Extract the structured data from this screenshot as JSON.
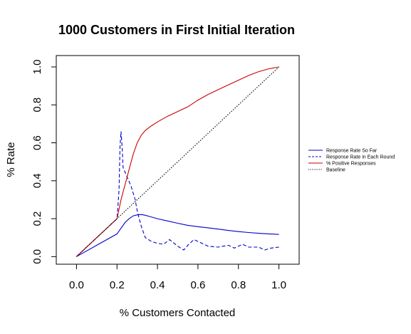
{
  "chart_data": {
    "type": "line",
    "title": "1000 Customers in First Initial Iteration",
    "xlabel": "% Customers Contacted",
    "ylabel": "% Rate",
    "xlim": [
      -0.1,
      1.1
    ],
    "ylim": [
      -0.04,
      1.06
    ],
    "xticks": [
      "0.0",
      "0.2",
      "0.4",
      "0.6",
      "0.8",
      "1.0"
    ],
    "yticks": [
      "0.0",
      "0.2",
      "0.4",
      "0.6",
      "0.8",
      "1.0"
    ],
    "grid": false,
    "legend_position": "right",
    "series": [
      {
        "name": "Response Rate So Far",
        "color": "#0000cc",
        "dash": "solid",
        "points": [
          [
            0.0,
            0.0
          ],
          [
            0.1,
            0.06
          ],
          [
            0.2,
            0.12
          ],
          [
            0.22,
            0.15
          ],
          [
            0.24,
            0.18
          ],
          [
            0.26,
            0.2
          ],
          [
            0.28,
            0.215
          ],
          [
            0.3,
            0.22
          ],
          [
            0.32,
            0.222
          ],
          [
            0.34,
            0.218
          ],
          [
            0.36,
            0.212
          ],
          [
            0.4,
            0.2
          ],
          [
            0.45,
            0.188
          ],
          [
            0.5,
            0.176
          ],
          [
            0.55,
            0.165
          ],
          [
            0.6,
            0.158
          ],
          [
            0.65,
            0.152
          ],
          [
            0.7,
            0.145
          ],
          [
            0.75,
            0.138
          ],
          [
            0.8,
            0.132
          ],
          [
            0.85,
            0.127
          ],
          [
            0.9,
            0.123
          ],
          [
            0.95,
            0.12
          ],
          [
            1.0,
            0.117
          ]
        ]
      },
      {
        "name": "Response Rate in Each Round",
        "color": "#0000cc",
        "dash": "dashed",
        "points": [
          [
            0.0,
            0.0
          ],
          [
            0.1,
            0.1
          ],
          [
            0.2,
            0.2
          ],
          [
            0.21,
            0.35
          ],
          [
            0.215,
            0.58
          ],
          [
            0.22,
            0.66
          ],
          [
            0.225,
            0.58
          ],
          [
            0.23,
            0.47
          ],
          [
            0.25,
            0.42
          ],
          [
            0.27,
            0.37
          ],
          [
            0.29,
            0.3
          ],
          [
            0.3,
            0.24
          ],
          [
            0.32,
            0.16
          ],
          [
            0.34,
            0.1
          ],
          [
            0.37,
            0.08
          ],
          [
            0.4,
            0.07
          ],
          [
            0.43,
            0.065
          ],
          [
            0.46,
            0.09
          ],
          [
            0.5,
            0.055
          ],
          [
            0.53,
            0.035
          ],
          [
            0.55,
            0.06
          ],
          [
            0.58,
            0.09
          ],
          [
            0.6,
            0.08
          ],
          [
            0.65,
            0.055
          ],
          [
            0.7,
            0.05
          ],
          [
            0.75,
            0.06
          ],
          [
            0.78,
            0.045
          ],
          [
            0.82,
            0.065
          ],
          [
            0.85,
            0.05
          ],
          [
            0.9,
            0.05
          ],
          [
            0.93,
            0.035
          ],
          [
            0.96,
            0.045
          ],
          [
            1.0,
            0.05
          ]
        ]
      },
      {
        "name": "% Positive Responses",
        "color": "#cc0000",
        "dash": "solid",
        "points": [
          [
            0.0,
            0.0
          ],
          [
            0.1,
            0.1
          ],
          [
            0.2,
            0.2
          ],
          [
            0.22,
            0.3
          ],
          [
            0.24,
            0.38
          ],
          [
            0.26,
            0.46
          ],
          [
            0.28,
            0.54
          ],
          [
            0.3,
            0.6
          ],
          [
            0.32,
            0.64
          ],
          [
            0.34,
            0.665
          ],
          [
            0.37,
            0.69
          ],
          [
            0.4,
            0.71
          ],
          [
            0.45,
            0.74
          ],
          [
            0.5,
            0.765
          ],
          [
            0.55,
            0.79
          ],
          [
            0.6,
            0.825
          ],
          [
            0.65,
            0.855
          ],
          [
            0.7,
            0.88
          ],
          [
            0.75,
            0.905
          ],
          [
            0.8,
            0.93
          ],
          [
            0.85,
            0.955
          ],
          [
            0.9,
            0.975
          ],
          [
            0.95,
            0.99
          ],
          [
            1.0,
            1.0
          ]
        ]
      },
      {
        "name": "Baseline",
        "color": "#000000",
        "dash": "dotted",
        "points": [
          [
            0.0,
            0.0
          ],
          [
            1.0,
            1.0
          ]
        ]
      }
    ]
  }
}
